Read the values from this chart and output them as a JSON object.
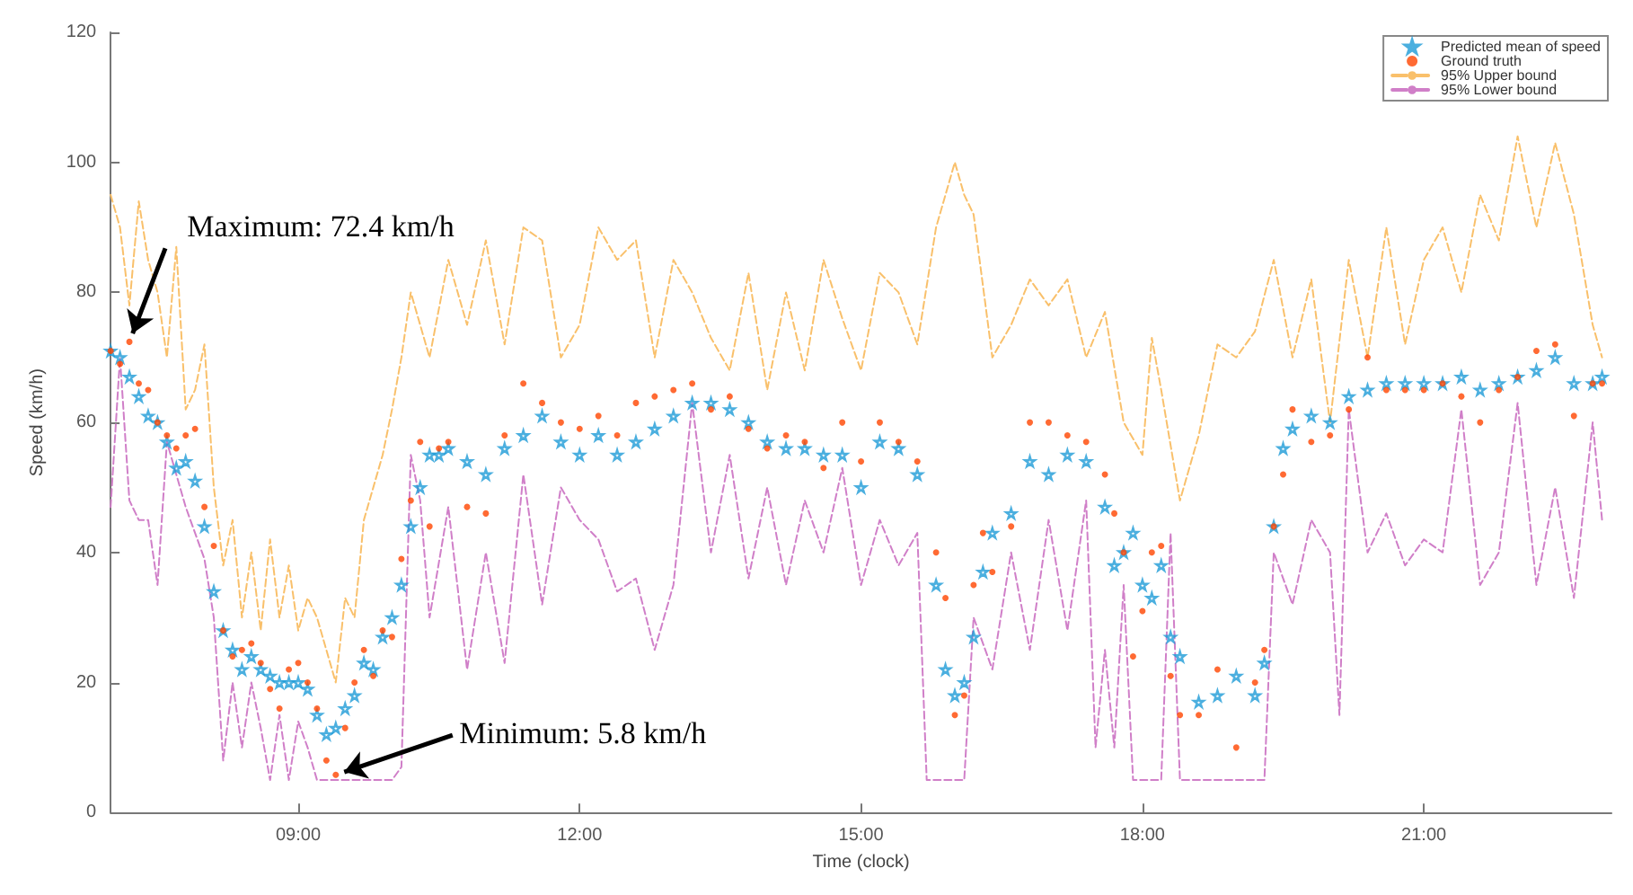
{
  "chart_data": {
    "type": "scatter",
    "xlabel": "Time (clock)",
    "ylabel": "Speed (km/h)",
    "xlim": [
      7,
      23
    ],
    "xticks": [
      {
        "value": 9,
        "label": "09:00"
      },
      {
        "value": 12,
        "label": "12:00"
      },
      {
        "value": 15,
        "label": "15:00"
      },
      {
        "value": 18,
        "label": "18:00"
      },
      {
        "value": 21,
        "label": "21:00"
      }
    ],
    "ylim": [
      0,
      120
    ],
    "yticks": [
      0,
      20,
      40,
      60,
      80,
      100,
      120
    ],
    "grid": false,
    "legend": "top right",
    "annotations": [
      {
        "text": "Maximum: 72.4 km/h",
        "x": 7.2,
        "y": 72.4
      },
      {
        "text": "Minimum: 5.8 km/h",
        "x": 9.4,
        "y": 5.8
      }
    ],
    "series": [
      {
        "name": "Predicted mean of speed",
        "type": "scatter",
        "marker": "star",
        "color": "#1e9bd7",
        "x": [
          7.0,
          7.1,
          7.2,
          7.3,
          7.4,
          7.5,
          7.6,
          7.7,
          7.8,
          7.9,
          8.0,
          8.1,
          8.2,
          8.3,
          8.4,
          8.5,
          8.6,
          8.7,
          8.8,
          8.9,
          9.0,
          9.1,
          9.2,
          9.3,
          9.4,
          9.5,
          9.6,
          9.7,
          9.8,
          9.9,
          10.0,
          10.1,
          10.2,
          10.3,
          10.4,
          10.5,
          10.6,
          10.8,
          11.0,
          11.2,
          11.4,
          11.6,
          11.8,
          12.0,
          12.2,
          12.4,
          12.6,
          12.8,
          13.0,
          13.2,
          13.4,
          13.6,
          13.8,
          14.0,
          14.2,
          14.4,
          14.6,
          14.8,
          15.0,
          15.2,
          15.4,
          15.6,
          15.8,
          15.9,
          16.0,
          16.1,
          16.2,
          16.3,
          16.4,
          16.6,
          16.8,
          17.0,
          17.2,
          17.4,
          17.6,
          17.7,
          17.8,
          17.9,
          18.0,
          18.1,
          18.2,
          18.3,
          18.4,
          18.6,
          18.8,
          19.0,
          19.2,
          19.3,
          19.4,
          19.5,
          19.6,
          19.8,
          20.0,
          20.2,
          20.4,
          20.6,
          20.8,
          21.0,
          21.2,
          21.4,
          21.6,
          21.8,
          22.0,
          22.2,
          22.4,
          22.6,
          22.8,
          22.9
        ],
        "values": [
          71,
          70,
          67,
          64,
          61,
          60,
          57,
          53,
          54,
          51,
          44,
          34,
          28,
          25,
          22,
          24,
          22,
          21,
          20,
          20,
          20,
          19,
          15,
          12,
          13,
          16,
          18,
          23,
          22,
          27,
          30,
          35,
          44,
          50,
          55,
          55,
          56,
          54,
          52,
          56,
          58,
          61,
          57,
          55,
          58,
          55,
          57,
          59,
          61,
          63,
          63,
          62,
          60,
          57,
          56,
          56,
          55,
          55,
          50,
          57,
          56,
          52,
          35,
          22,
          18,
          20,
          27,
          37,
          43,
          46,
          54,
          52,
          55,
          54,
          47,
          38,
          40,
          43,
          35,
          33,
          38,
          27,
          24,
          17,
          18,
          21,
          18,
          23,
          44,
          56,
          59,
          61,
          60,
          64,
          65,
          66,
          66,
          66,
          66,
          67,
          65,
          66,
          67,
          68,
          70,
          66,
          66,
          67
        ]
      },
      {
        "name": "Ground truth",
        "type": "scatter",
        "marker": "circle",
        "color": "#ff4500",
        "x": [
          7.0,
          7.1,
          7.2,
          7.3,
          7.4,
          7.5,
          7.6,
          7.7,
          7.8,
          7.9,
          8.0,
          8.1,
          8.2,
          8.3,
          8.4,
          8.5,
          8.6,
          8.7,
          8.8,
          8.9,
          9.0,
          9.1,
          9.2,
          9.3,
          9.4,
          9.5,
          9.6,
          9.7,
          9.8,
          9.9,
          10.0,
          10.1,
          10.2,
          10.3,
          10.4,
          10.5,
          10.6,
          10.8,
          11.0,
          11.2,
          11.4,
          11.6,
          11.8,
          12.0,
          12.2,
          12.4,
          12.6,
          12.8,
          13.0,
          13.2,
          13.4,
          13.6,
          13.8,
          14.0,
          14.2,
          14.4,
          14.6,
          14.8,
          15.0,
          15.2,
          15.4,
          15.6,
          15.8,
          15.9,
          16.0,
          16.1,
          16.2,
          16.3,
          16.4,
          16.6,
          16.8,
          17.0,
          17.2,
          17.4,
          17.6,
          17.7,
          17.8,
          17.9,
          18.0,
          18.1,
          18.2,
          18.3,
          18.4,
          18.6,
          18.8,
          19.0,
          19.2,
          19.3,
          19.4,
          19.5,
          19.6,
          19.8,
          20.0,
          20.2,
          20.4,
          20.6,
          20.8,
          21.0,
          21.2,
          21.4,
          21.6,
          21.8,
          22.0,
          22.2,
          22.4,
          22.6,
          22.8,
          22.9
        ],
        "values": [
          71,
          69,
          72.4,
          66,
          65,
          60,
          58,
          56,
          58,
          59,
          47,
          41,
          28,
          24,
          25,
          26,
          23,
          19,
          16,
          22,
          23,
          20,
          16,
          8,
          5.8,
          13,
          20,
          25,
          21,
          28,
          27,
          39,
          48,
          57,
          44,
          56,
          57,
          47,
          46,
          58,
          66,
          63,
          60,
          59,
          61,
          58,
          63,
          64,
          65,
          66,
          62,
          64,
          59,
          56,
          58,
          57,
          53,
          60,
          54,
          60,
          57,
          54,
          40,
          33,
          15,
          18,
          35,
          43,
          37,
          44,
          60,
          60,
          58,
          57,
          52,
          46,
          40,
          24,
          31,
          40,
          41,
          21,
          15,
          15,
          22,
          10,
          20,
          25,
          44,
          52,
          62,
          57,
          58,
          62,
          70,
          65,
          65,
          65,
          66,
          64,
          60,
          65,
          67,
          71,
          72,
          61,
          66,
          66
        ]
      },
      {
        "name": "95% Upper bound",
        "type": "line",
        "marker": "none",
        "line_style": "dashed",
        "color": "#f9c06b",
        "x": [
          7.0,
          7.1,
          7.2,
          7.3,
          7.4,
          7.5,
          7.6,
          7.7,
          7.8,
          7.9,
          8.0,
          8.1,
          8.2,
          8.3,
          8.4,
          8.5,
          8.6,
          8.7,
          8.8,
          8.9,
          9.0,
          9.1,
          9.2,
          9.3,
          9.4,
          9.5,
          9.6,
          9.7,
          9.8,
          9.9,
          10.0,
          10.1,
          10.2,
          10.4,
          10.6,
          10.8,
          11.0,
          11.2,
          11.4,
          11.6,
          11.8,
          12.0,
          12.2,
          12.4,
          12.6,
          12.8,
          13.0,
          13.2,
          13.4,
          13.6,
          13.8,
          14.0,
          14.2,
          14.4,
          14.6,
          14.8,
          15.0,
          15.2,
          15.4,
          15.6,
          15.8,
          16.0,
          16.1,
          16.2,
          16.4,
          16.6,
          16.8,
          17.0,
          17.2,
          17.4,
          17.6,
          17.8,
          18.0,
          18.1,
          18.2,
          18.4,
          18.6,
          18.8,
          19.0,
          19.2,
          19.4,
          19.6,
          19.8,
          20.0,
          20.2,
          20.4,
          20.6,
          20.8,
          21.0,
          21.2,
          21.4,
          21.6,
          21.8,
          22.0,
          22.2,
          22.4,
          22.6,
          22.8,
          22.9
        ],
        "values": [
          95,
          90,
          78,
          94,
          85,
          80,
          70,
          87,
          62,
          65,
          72,
          50,
          38,
          45,
          30,
          40,
          28,
          42,
          30,
          38,
          28,
          33,
          30,
          25,
          20,
          33,
          30,
          45,
          50,
          55,
          62,
          70,
          80,
          70,
          85,
          75,
          88,
          72,
          90,
          88,
          70,
          75,
          90,
          85,
          88,
          70,
          85,
          80,
          73,
          68,
          83,
          65,
          80,
          68,
          85,
          76,
          68,
          83,
          80,
          72,
          90,
          100,
          95,
          92,
          70,
          75,
          82,
          78,
          82,
          70,
          77,
          60,
          55,
          73,
          65,
          48,
          58,
          72,
          70,
          74,
          85,
          70,
          82,
          60,
          85,
          70,
          90,
          72,
          85,
          90,
          80,
          95,
          88,
          104,
          90,
          103,
          92,
          75,
          70
        ]
      },
      {
        "name": "95% Lower bound",
        "type": "line",
        "marker": "none",
        "line_style": "dashed",
        "color": "#d07fc8",
        "x": [
          7.0,
          7.1,
          7.2,
          7.3,
          7.4,
          7.5,
          7.6,
          7.7,
          7.8,
          7.9,
          8.0,
          8.1,
          8.2,
          8.3,
          8.4,
          8.5,
          8.6,
          8.7,
          8.8,
          8.9,
          9.0,
          9.1,
          9.2,
          9.3,
          9.4,
          9.6,
          9.8,
          10.0,
          10.1,
          10.2,
          10.3,
          10.4,
          10.6,
          10.8,
          11.0,
          11.2,
          11.4,
          11.6,
          11.8,
          12.0,
          12.2,
          12.4,
          12.6,
          12.8,
          13.0,
          13.2,
          13.4,
          13.6,
          13.8,
          14.0,
          14.2,
          14.4,
          14.6,
          14.8,
          15.0,
          15.2,
          15.4,
          15.6,
          15.7,
          16.0,
          16.1,
          16.2,
          16.4,
          16.6,
          16.8,
          17.0,
          17.2,
          17.4,
          17.5,
          17.6,
          17.7,
          17.8,
          17.9,
          18.0,
          18.2,
          18.3,
          18.4,
          18.6,
          19.0,
          19.2,
          19.3,
          19.4,
          19.6,
          19.8,
          20.0,
          20.1,
          20.2,
          20.4,
          20.6,
          20.8,
          21.0,
          21.2,
          21.4,
          21.6,
          21.8,
          22.0,
          22.2,
          22.4,
          22.6,
          22.8,
          22.9
        ],
        "values": [
          47,
          70,
          48,
          45,
          45,
          35,
          57,
          52,
          47,
          43,
          39,
          30,
          8,
          20,
          10,
          20,
          13,
          5,
          15,
          5,
          14,
          10,
          5,
          5,
          5,
          5,
          5,
          5,
          7,
          55,
          48,
          30,
          47,
          22,
          40,
          23,
          52,
          32,
          50,
          45,
          42,
          34,
          36,
          25,
          35,
          63,
          40,
          55,
          36,
          50,
          35,
          48,
          40,
          53,
          35,
          45,
          38,
          43,
          5,
          5,
          5,
          30,
          22,
          40,
          25,
          45,
          28,
          48,
          10,
          25,
          10,
          35,
          5,
          5,
          5,
          43,
          5,
          5,
          5,
          5,
          5,
          40,
          32,
          45,
          40,
          15,
          62,
          40,
          46,
          38,
          42,
          40,
          62,
          35,
          40,
          63,
          35,
          50,
          33,
          60,
          45
        ]
      }
    ]
  }
}
